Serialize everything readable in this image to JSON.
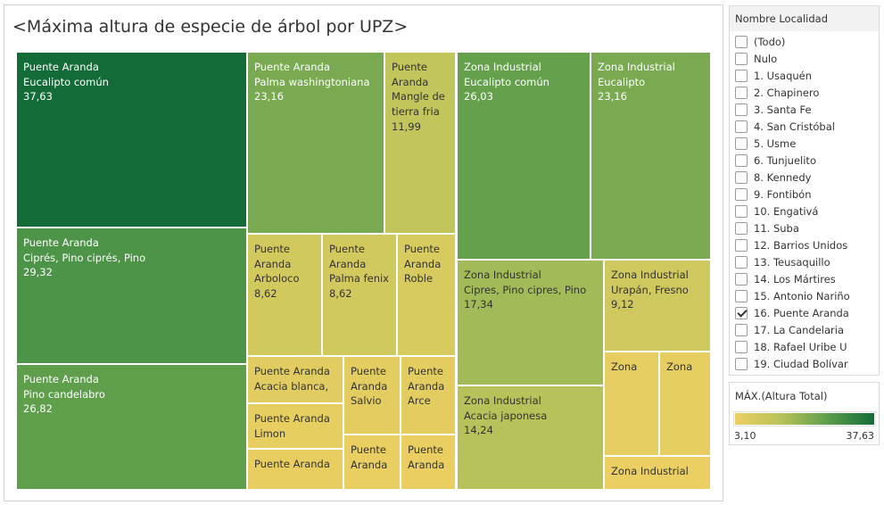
{
  "title": "<Máxima altura de especie de árbol por UPZ>",
  "chart_data": {
    "type": "treemap",
    "title": "<Máxima altura de especie de árbol por UPZ>",
    "measure": "MÁX.(Altura Total)",
    "color_range": [
      3.1,
      37.63
    ],
    "color_stops": [
      "#eccf62",
      "#136c38"
    ],
    "cells": [
      {
        "upz": "Puente Aranda",
        "especie": "Eucalipto común",
        "value": 37.63,
        "lines": [
          "Puente Aranda",
          "Eucalipto común",
          "37,63"
        ]
      },
      {
        "upz": "Puente Aranda",
        "especie": "Ciprés, Pino ciprés, Pino",
        "value": 29.32,
        "lines": [
          "Puente Aranda",
          "Ciprés, Pino ciprés, Pino",
          "29,32"
        ]
      },
      {
        "upz": "Puente Aranda",
        "especie": "Pino candelabro",
        "value": 26.82,
        "lines": [
          "Puente Aranda",
          "Pino candelabro",
          "26,82"
        ]
      },
      {
        "upz": "Puente Aranda",
        "especie": "Palma washingtoniana",
        "value": 23.16,
        "lines": [
          "Puente Aranda",
          "Palma washingtoniana",
          "23,16"
        ]
      },
      {
        "upz": "Puente Aranda",
        "especie": "Mangle de tierra fria",
        "value": 11.99,
        "lines": [
          "Puente",
          "Aranda",
          "Mangle de",
          "tierra fria",
          "11,99"
        ]
      },
      {
        "upz": "Puente Aranda",
        "especie": "Arboloco",
        "value": 8.62,
        "lines": [
          "Puente",
          "Aranda",
          "Arboloco",
          "8,62"
        ]
      },
      {
        "upz": "Puente Aranda",
        "especie": "Palma fenix",
        "value": 8.62,
        "lines": [
          "Puente",
          "Aranda",
          "Palma fenix",
          "8,62"
        ]
      },
      {
        "upz": "Puente Aranda",
        "especie": "Roble",
        "value": 7.6,
        "lines": [
          "Puente",
          "Aranda",
          "Roble"
        ]
      },
      {
        "upz": "Puente Aranda",
        "especie": "Acacia blanca,",
        "value": 5.6,
        "lines": [
          "Puente Aranda",
          "Acacia blanca,"
        ]
      },
      {
        "upz": "Puente Aranda",
        "especie": "Salvio",
        "value": 5.1,
        "lines": [
          "Puente",
          "Aranda",
          "Salvio"
        ]
      },
      {
        "upz": "Puente Aranda",
        "especie": "Arce",
        "value": 5.0,
        "lines": [
          "Puente",
          "Aranda",
          "Arce"
        ]
      },
      {
        "upz": "Puente Aranda",
        "especie": "Limon",
        "value": 4.4,
        "lines": [
          "Puente Aranda",
          "Limon"
        ]
      },
      {
        "upz": "Puente Aranda",
        "especie": "",
        "value": 3.9,
        "lines": [
          "Puente Aranda"
        ]
      },
      {
        "upz": "Puente Aranda",
        "especie": "",
        "value": 3.8,
        "lines": [
          "Puente",
          "Aranda"
        ]
      },
      {
        "upz": "Puente Aranda",
        "especie": "",
        "value": 3.6,
        "lines": [
          "Puente",
          "Aranda"
        ]
      },
      {
        "upz": "Zona Industrial",
        "especie": "Eucalipto común",
        "value": 26.03,
        "lines": [
          "Zona Industrial",
          "Eucalipto común",
          "26,03"
        ]
      },
      {
        "upz": "Zona Industrial",
        "especie": "Eucalipto",
        "value": 23.16,
        "lines": [
          "Zona Industrial",
          "Eucalipto",
          "23,16"
        ]
      },
      {
        "upz": "Zona Industrial",
        "especie": "Cipres, Pino cipres, Pino",
        "value": 17.34,
        "lines": [
          "Zona Industrial",
          "Cipres, Pino cipres, Pino",
          "17,34"
        ]
      },
      {
        "upz": "Zona Industrial",
        "especie": "Acacia japonesa",
        "value": 14.24,
        "lines": [
          "Zona Industrial",
          "Acacia japonesa",
          "14,24"
        ]
      },
      {
        "upz": "Zona Industrial",
        "especie": "Urapán, Fresno",
        "value": 9.12,
        "lines": [
          "Zona Industrial",
          "Urapán, Fresno",
          "9,12"
        ]
      },
      {
        "upz": "Zona Industrial",
        "especie": "",
        "value": 4.5,
        "lines": [
          "Zona"
        ]
      },
      {
        "upz": "Zona Industrial",
        "especie": "",
        "value": 4.2,
        "lines": [
          "Zona"
        ]
      },
      {
        "upz": "Zona Industrial",
        "especie": "",
        "value": 3.1,
        "lines": [
          "Zona Industrial"
        ]
      }
    ]
  },
  "filter": {
    "header": "Nombre Localidad",
    "items": [
      {
        "label": "(Todo)",
        "checked": false
      },
      {
        "label": "Nulo",
        "checked": false
      },
      {
        "label": "1. Usaquén",
        "checked": false
      },
      {
        "label": "2. Chapinero",
        "checked": false
      },
      {
        "label": "3. Santa Fe",
        "checked": false
      },
      {
        "label": "4. San Cristóbal",
        "checked": false
      },
      {
        "label": "5. Usme",
        "checked": false
      },
      {
        "label": "6. Tunjuelito",
        "checked": false
      },
      {
        "label": "8. Kennedy",
        "checked": false
      },
      {
        "label": "9. Fontibón",
        "checked": false
      },
      {
        "label": "10. Engativá",
        "checked": false
      },
      {
        "label": "11. Suba",
        "checked": false
      },
      {
        "label": "12. Barrios Unidos",
        "checked": false
      },
      {
        "label": "13. Teusaquillo",
        "checked": false
      },
      {
        "label": "14. Los Mártires",
        "checked": false
      },
      {
        "label": "15. Antonio Nariño",
        "checked": false
      },
      {
        "label": "16. Puente Aranda",
        "checked": true
      },
      {
        "label": "17. La Candelaria",
        "checked": false
      },
      {
        "label": "18. Rafael Uribe U",
        "checked": false
      },
      {
        "label": "19. Ciudad Bolívar",
        "checked": false
      }
    ]
  },
  "legend": {
    "title": "MÁX.(Altura Total)",
    "min_label": "3,10",
    "max_label": "37,63"
  }
}
